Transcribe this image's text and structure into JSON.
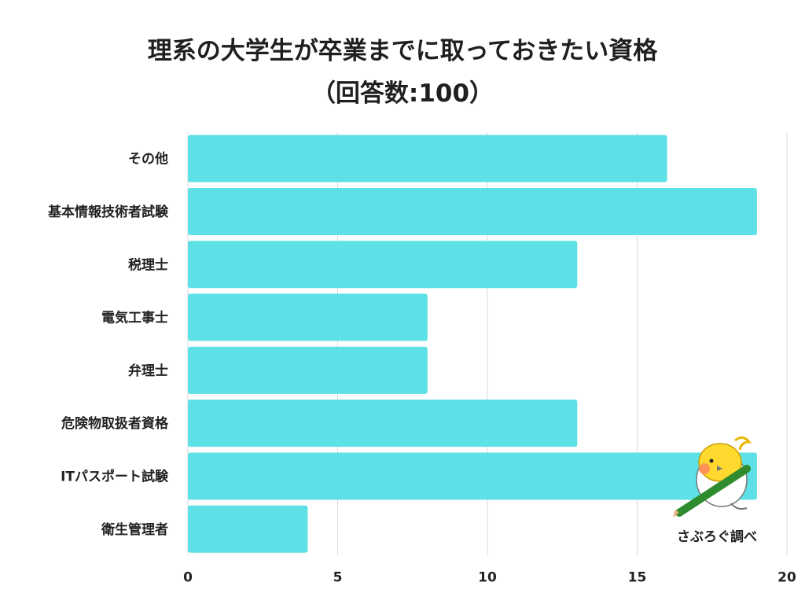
{
  "chart_data": {
    "type": "bar",
    "orientation": "horizontal",
    "title": "理系の大学生が卒業までに取っておきたい資格",
    "subtitle": "（回答数:100）",
    "categories": [
      "その他",
      "基本情報技術者試験",
      "税理士",
      "電気工事士",
      "弁理士",
      "危険物取扱者資格",
      "ITパスポート試験",
      "衛生管理者"
    ],
    "values": [
      16,
      19,
      13,
      8,
      8,
      13,
      19,
      4
    ],
    "xlim": [
      0,
      20
    ],
    "xticks": [
      "0",
      "5",
      "10",
      "15",
      "20"
    ],
    "grid": true,
    "bar_color": "#5DE1E6"
  },
  "credit": "さぶろぐ調べ",
  "mascot_icon": "bird-with-pencil-icon"
}
